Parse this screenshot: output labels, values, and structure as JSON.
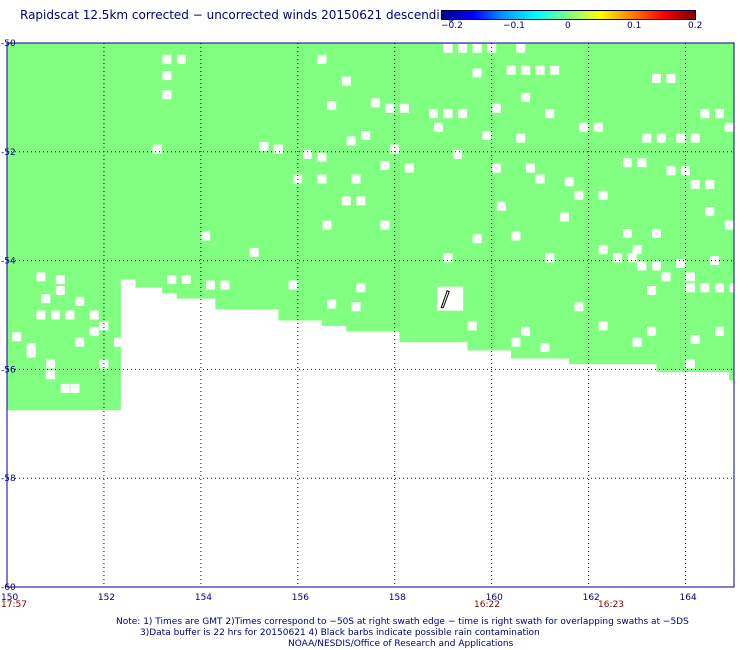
{
  "title": "Rapidscat 12.5km corrected − uncorrected winds 20150621 descending",
  "colorbar": {
    "ticks": [
      "−0.2",
      "−0.1",
      "0",
      "0.1",
      "0.2"
    ],
    "colors": [
      "#000090",
      "#0000ff",
      "#00a0ff",
      "#00ffff",
      "#80ff80",
      "#ffff00",
      "#ff8000",
      "#ff0000",
      "#800000"
    ]
  },
  "colors": {
    "wind_fill": "#80ff80",
    "grid": "#000090",
    "axis_text": "#000080",
    "time_text": "#800000"
  },
  "chart_data": {
    "type": "heatmap",
    "xlim": [
      150,
      165
    ],
    "ylim": [
      -60,
      -50
    ],
    "x_ticks": [
      "150",
      "152",
      "154",
      "156",
      "158",
      "160",
      "162",
      "164"
    ],
    "y_ticks": [
      "-50",
      "-52",
      "-54",
      "-56",
      "-58",
      "-60"
    ],
    "time_labels": [
      {
        "lon": 150,
        "text": "17:57"
      },
      {
        "lon": 159.9,
        "text": "16:22"
      },
      {
        "lon": 162.5,
        "text": "16:23"
      }
    ],
    "swath_lon_steps": [
      150,
      152.35,
      152.65,
      153.2,
      153.5,
      154.3,
      155.6,
      156.5,
      157,
      158.1,
      159.5,
      160.4,
      161.6,
      163.4,
      164.9
    ],
    "swath_lat_steps": [
      -56.75,
      -54.35,
      -54.5,
      -54.6,
      -54.7,
      -54.9,
      -55.1,
      -55.2,
      -55.3,
      -55.5,
      -55.65,
      -55.8,
      -55.9,
      -56.05,
      -56.2
    ],
    "gap_lat_from": -50,
    "rain_barb": {
      "lon": 159.0,
      "lat": -54.7
    },
    "white_cells": [
      [
        159.1,
        -50.1
      ],
      [
        159.4,
        -50.1
      ],
      [
        159.7,
        -50.1
      ],
      [
        160.0,
        -50.1
      ],
      [
        160.6,
        -50.1
      ],
      [
        153.3,
        -50.3
      ],
      [
        153.6,
        -50.3
      ],
      [
        153.3,
        -50.6
      ],
      [
        156.5,
        -50.3
      ],
      [
        159.7,
        -50.55
      ],
      [
        160.4,
        -50.5
      ],
      [
        160.7,
        -50.5
      ],
      [
        161.0,
        -50.5
      ],
      [
        161.3,
        -50.5
      ],
      [
        163.4,
        -50.65
      ],
      [
        163.7,
        -50.65
      ],
      [
        153.3,
        -50.95
      ],
      [
        157.0,
        -50.7
      ],
      [
        157.6,
        -51.1
      ],
      [
        157.9,
        -51.2
      ],
      [
        158.2,
        -51.2
      ],
      [
        158.8,
        -51.3
      ],
      [
        159.1,
        -51.3
      ],
      [
        159.4,
        -51.3
      ],
      [
        160.7,
        -51.0
      ],
      [
        160.1,
        -51.2
      ],
      [
        161.2,
        -51.3
      ],
      [
        161.9,
        -51.55
      ],
      [
        162.2,
        -51.55
      ],
      [
        164.4,
        -51.3
      ],
      [
        164.7,
        -51.3
      ],
      [
        164.9,
        -51.55
      ],
      [
        156.7,
        -51.15
      ],
      [
        158.9,
        -51.55
      ],
      [
        159.9,
        -51.7
      ],
      [
        160.6,
        -51.75
      ],
      [
        157.1,
        -51.8
      ],
      [
        157.4,
        -51.7
      ],
      [
        155.3,
        -51.9
      ],
      [
        155.6,
        -51.95
      ],
      [
        153.1,
        -51.95
      ],
      [
        158.0,
        -51.95
      ],
      [
        163.2,
        -51.75
      ],
      [
        163.5,
        -51.75
      ],
      [
        163.9,
        -51.75
      ],
      [
        164.2,
        -51.75
      ],
      [
        156.2,
        -52.05
      ],
      [
        156.5,
        -52.1
      ],
      [
        157.8,
        -52.25
      ],
      [
        158.3,
        -52.3
      ],
      [
        159.3,
        -52.05
      ],
      [
        160.1,
        -52.3
      ],
      [
        160.8,
        -52.3
      ],
      [
        162.8,
        -52.2
      ],
      [
        163.1,
        -52.2
      ],
      [
        163.7,
        -52.35
      ],
      [
        164.0,
        -52.35
      ],
      [
        156.0,
        -52.5
      ],
      [
        156.5,
        -52.5
      ],
      [
        157.2,
        -52.5
      ],
      [
        161.0,
        -52.5
      ],
      [
        161.6,
        -52.55
      ],
      [
        161.8,
        -52.8
      ],
      [
        162.3,
        -52.8
      ],
      [
        164.2,
        -52.6
      ],
      [
        164.5,
        -52.6
      ],
      [
        157.0,
        -52.9
      ],
      [
        157.3,
        -52.9
      ],
      [
        160.2,
        -53.0
      ],
      [
        164.5,
        -53.1
      ],
      [
        161.5,
        -53.2
      ],
      [
        156.6,
        -53.35
      ],
      [
        157.8,
        -53.35
      ],
      [
        164.9,
        -53.35
      ],
      [
        162.8,
        -53.5
      ],
      [
        163.4,
        -53.5
      ],
      [
        154.1,
        -53.55
      ],
      [
        159.7,
        -53.6
      ],
      [
        160.5,
        -53.55
      ],
      [
        163.0,
        -53.8
      ],
      [
        155.1,
        -53.85
      ],
      [
        162.3,
        -53.8
      ],
      [
        159.1,
        -53.95
      ],
      [
        161.2,
        -53.95
      ],
      [
        162.6,
        -53.95
      ],
      [
        162.9,
        -53.95
      ],
      [
        164.6,
        -54.0
      ],
      [
        163.1,
        -54.1
      ],
      [
        163.4,
        -54.1
      ],
      [
        163.9,
        -54.05
      ],
      [
        163.6,
        -54.3
      ],
      [
        164.1,
        -54.3
      ],
      [
        153.4,
        -54.35
      ],
      [
        153.7,
        -54.35
      ],
      [
        154.2,
        -54.45
      ],
      [
        154.5,
        -54.45
      ],
      [
        150.7,
        -54.3
      ],
      [
        151.1,
        -54.35
      ],
      [
        151.1,
        -54.55
      ],
      [
        150.8,
        -54.7
      ],
      [
        151.5,
        -54.75
      ],
      [
        155.9,
        -54.45
      ],
      [
        150.7,
        -55.0
      ],
      [
        151.0,
        -55.0
      ],
      [
        151.3,
        -55.0
      ],
      [
        151.8,
        -55.0
      ],
      [
        157.3,
        -54.5
      ],
      [
        157.2,
        -54.85
      ],
      [
        163.3,
        -54.55
      ],
      [
        164.1,
        -54.5
      ],
      [
        164.4,
        -54.5
      ],
      [
        164.7,
        -54.5
      ],
      [
        165.0,
        -54.5
      ],
      [
        156.7,
        -54.8
      ],
      [
        152.0,
        -55.2
      ],
      [
        151.8,
        -55.3
      ],
      [
        154.5,
        -55.1
      ],
      [
        152.3,
        -55.5
      ],
      [
        151.5,
        -55.5
      ],
      [
        161.8,
        -54.85
      ],
      [
        159.6,
        -55.2
      ],
      [
        160.7,
        -55.3
      ],
      [
        162.3,
        -55.2
      ],
      [
        163.3,
        -55.3
      ],
      [
        164.7,
        -55.3
      ],
      [
        150.2,
        -55.4
      ],
      [
        150.5,
        -55.6
      ],
      [
        150.5,
        -55.7
      ],
      [
        150.9,
        -55.9
      ],
      [
        152.0,
        -55.9
      ],
      [
        150.9,
        -56.1
      ],
      [
        163.0,
        -55.5
      ],
      [
        164.2,
        -55.45
      ],
      [
        160.5,
        -55.5
      ],
      [
        161.1,
        -55.6
      ],
      [
        164.1,
        -55.9
      ],
      [
        151.2,
        -56.35
      ],
      [
        151.4,
        -56.35
      ]
    ]
  },
  "notes": {
    "line1": "Note: 1) Times are GMT 2)Times correspond to −50S at right swath edge − time is right swath for overlapping swaths at −5DS",
    "line2": "3)Data buffer is 22 hrs for 20150621 4) Black barbs indicate possible rain contamination",
    "line3": "NOAA/NESDIS/Office of Research and Applications"
  }
}
